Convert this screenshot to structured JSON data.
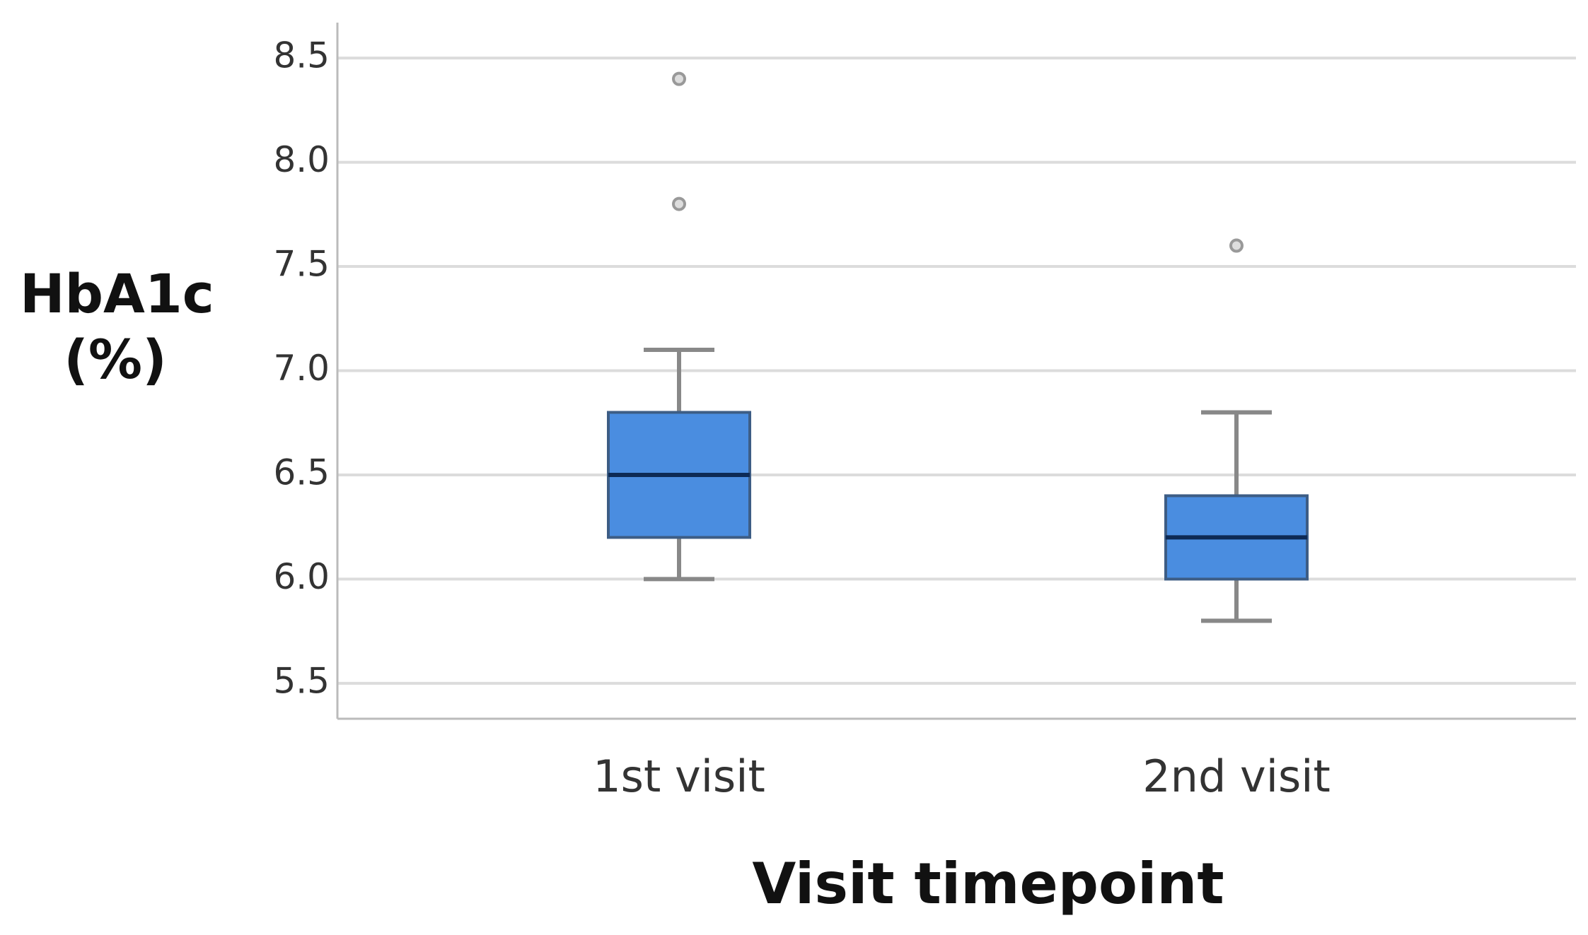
{
  "chart_data": {
    "type": "box",
    "y_label": "HbA1c (%)",
    "x_label": "Visit timepoint",
    "categories": [
      "1st visit",
      "2nd visit"
    ],
    "boxes": [
      {
        "min": 6.0,
        "q1": 6.2,
        "median": 6.5,
        "q3": 6.8,
        "max": 7.1,
        "outliers": [
          7.8,
          8.4
        ]
      },
      {
        "min": 5.8,
        "q1": 6.0,
        "median": 6.2,
        "q3": 6.4,
        "max": 6.8,
        "outliers": [
          7.6
        ]
      }
    ],
    "color": "#4a8de0",
    "ylim": [
      5.33,
      8.67
    ],
    "yticks": [
      5.5,
      {
        "value": 6,
        "label": "6.0"
      },
      6.5,
      {
        "value": 7,
        "label": "7.0"
      },
      7.5,
      {
        "value": 8,
        "label": "8.0"
      },
      8.5
    ],
    "grid": true
  }
}
